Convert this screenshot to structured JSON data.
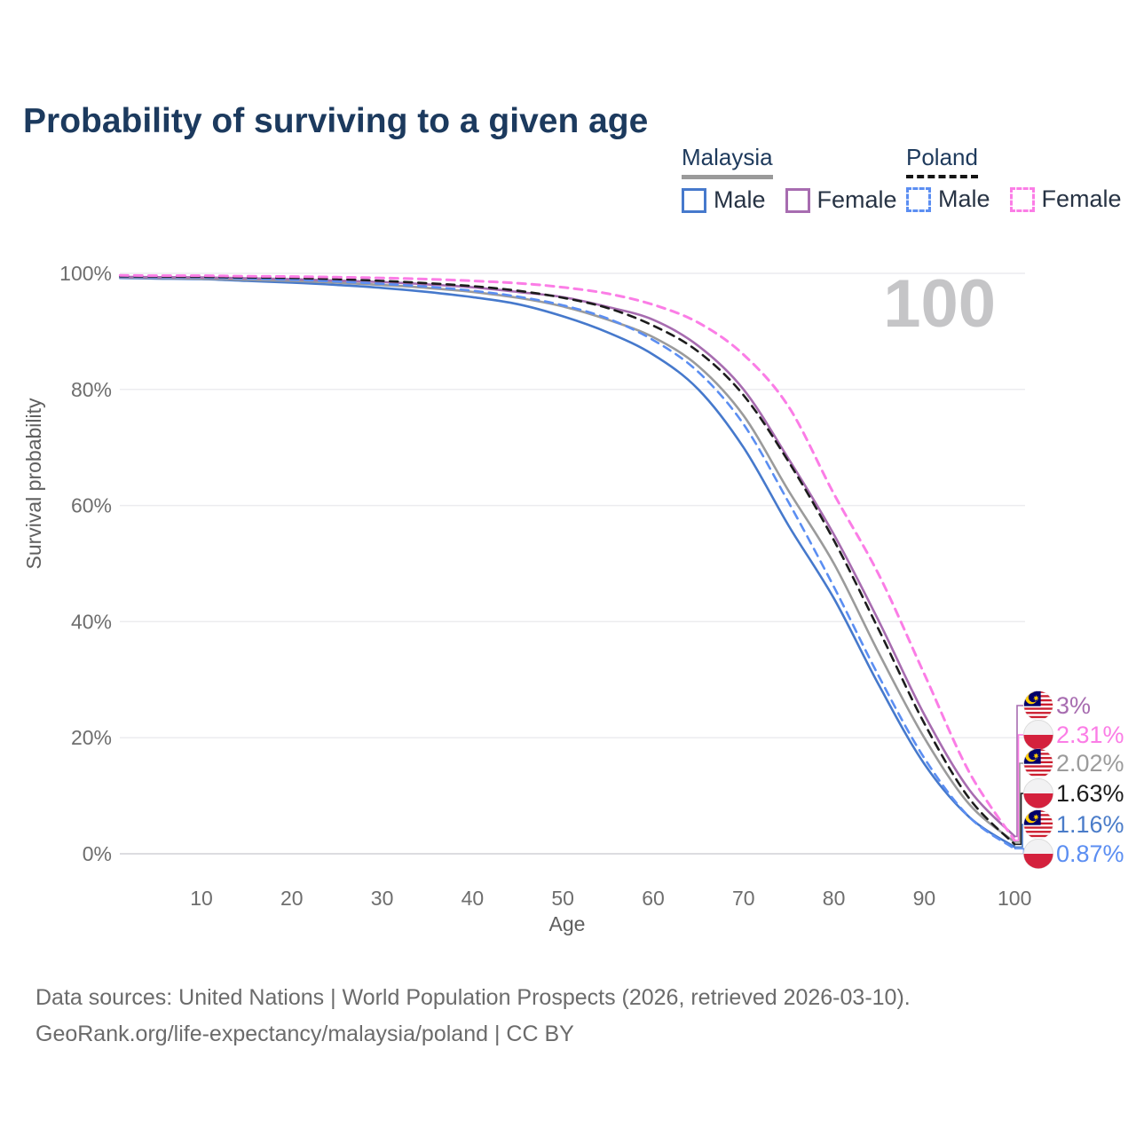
{
  "title": "Probability of surviving to a given age",
  "age_counter": "100",
  "legend": {
    "groups": [
      {
        "label": "Malaysia",
        "style": "solid",
        "items": [
          {
            "label": "Male"
          },
          {
            "label": "Female"
          }
        ]
      },
      {
        "label": "Poland",
        "style": "dashed",
        "items": [
          {
            "label": "Male"
          },
          {
            "label": "Female"
          }
        ]
      }
    ]
  },
  "chart_data": {
    "type": "line",
    "title": "Probability of surviving to a given age",
    "xlabel": "Age",
    "ylabel": "Survival probability",
    "xlim": [
      0,
      100
    ],
    "ylim": [
      0,
      100
    ],
    "grid": true,
    "x_ticks": [
      10,
      20,
      30,
      40,
      50,
      60,
      70,
      80,
      90,
      100
    ],
    "y_ticks": [
      {
        "value": 100,
        "label": "100%"
      },
      {
        "value": 80,
        "label": "80%"
      },
      {
        "value": 60,
        "label": "60%"
      },
      {
        "value": 40,
        "label": "40%"
      },
      {
        "value": 20,
        "label": "20%"
      },
      {
        "value": 0,
        "label": "0%"
      }
    ],
    "ages": [
      1,
      5,
      10,
      15,
      20,
      25,
      30,
      35,
      40,
      45,
      50,
      55,
      60,
      65,
      70,
      75,
      80,
      85,
      90,
      95,
      100
    ],
    "series": [
      {
        "name": "Malaysia Male",
        "country": "malaysia",
        "sex": "male",
        "color": "#4679cc",
        "line_style": "solid",
        "values": [
          99.2,
          99.1,
          99.0,
          98.7,
          98.4,
          98.0,
          97.5,
          96.8,
          95.9,
          94.7,
          92.6,
          89.8,
          86.0,
          80.0,
          70.0,
          56.5,
          44.0,
          29.0,
          15.5,
          6.3,
          1.16
        ]
      },
      {
        "name": "Malaysia (both sexes)",
        "country": "malaysia",
        "sex": "both",
        "color": "#9b9b9b",
        "line_style": "solid",
        "values": [
          99.3,
          99.2,
          99.1,
          98.9,
          98.7,
          98.4,
          98.0,
          97.5,
          96.8,
          95.8,
          94.3,
          92.0,
          89.0,
          84.0,
          75.5,
          62.5,
          50.0,
          34.5,
          20.0,
          8.5,
          2.02
        ]
      },
      {
        "name": "Malaysia Female",
        "country": "malaysia",
        "sex": "female",
        "color": "#a76cb0",
        "line_style": "solid",
        "values": [
          99.4,
          99.35,
          99.3,
          99.15,
          99.0,
          98.75,
          98.5,
          98.1,
          97.6,
          96.8,
          95.9,
          94.2,
          92.0,
          87.5,
          80.0,
          68.0,
          55.0,
          40.0,
          24.0,
          11.0,
          3.0
        ]
      },
      {
        "name": "Poland Male",
        "country": "poland",
        "sex": "male",
        "color": "#5b8ef2",
        "line_style": "dashed",
        "values": [
          99.4,
          99.35,
          99.3,
          99.1,
          98.9,
          98.6,
          98.2,
          97.7,
          97.0,
          96.0,
          94.5,
          92.2,
          88.5,
          83.0,
          74.0,
          60.5,
          46.0,
          30.5,
          16.5,
          6.3,
          0.87
        ]
      },
      {
        "name": "Poland (both sexes)",
        "country": "poland",
        "sex": "both",
        "color": "#1c1c1c",
        "line_style": "dashed",
        "values": [
          99.5,
          99.45,
          99.4,
          99.3,
          99.2,
          99.0,
          98.7,
          98.3,
          97.8,
          97.0,
          95.8,
          94.0,
          91.0,
          86.5,
          79.0,
          67.5,
          54.0,
          38.5,
          22.5,
          9.5,
          1.63
        ]
      },
      {
        "name": "Poland Female",
        "country": "poland",
        "sex": "female",
        "color": "#fb7de6",
        "line_style": "dashed",
        "values": [
          99.65,
          99.6,
          99.6,
          99.5,
          99.45,
          99.35,
          99.2,
          99.0,
          98.7,
          98.3,
          97.6,
          96.5,
          94.6,
          91.5,
          86.0,
          77.0,
          62.0,
          48.0,
          31.0,
          14.0,
          2.31
        ]
      }
    ],
    "end_labels": [
      {
        "text": "3%",
        "series": "Malaysia Female",
        "flag": "malaysia",
        "color": "#a76cb0"
      },
      {
        "text": "2.31%",
        "series": "Poland Female",
        "flag": "poland",
        "color": "#fb7de6"
      },
      {
        "text": "2.02%",
        "series": "Malaysia (both sexes)",
        "flag": "malaysia",
        "color": "#9b9b9b"
      },
      {
        "text": "1.63%",
        "series": "Poland (both sexes)",
        "flag": "poland",
        "color": "#1c1c1c"
      },
      {
        "text": "1.16%",
        "series": "Malaysia Male",
        "flag": "malaysia",
        "color": "#4a7cc9"
      },
      {
        "text": "0.87%",
        "series": "Poland Male",
        "flag": "poland",
        "color": "#5b8ef2"
      }
    ],
    "flag_colors": {
      "malaysia": {
        "red": "#cc1e2f",
        "white": "#ffffff",
        "blue": "#01006a",
        "yellow": "#ffcc00"
      },
      "poland": {
        "white": "#f2f2f3",
        "red": "#d4213d"
      }
    }
  },
  "footer": {
    "line1": "Data sources: United Nations | World Population Prospects (2026, retrieved 2026-03-10).",
    "line2": "GeoRank.org/life-expectancy/malaysia/poland | CC BY"
  }
}
